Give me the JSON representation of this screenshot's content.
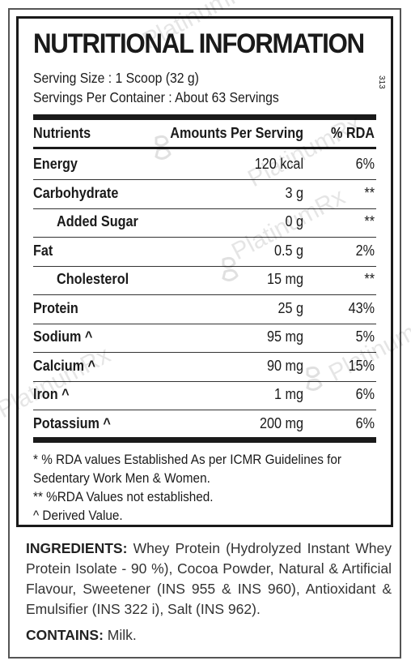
{
  "panel": {
    "title": "NUTRITIONAL INFORMATION",
    "serving_size": "Serving Size : 1 Scoop (32 g)",
    "servings_per_container": "Servings Per Container : About 63 Servings",
    "side_code": "313"
  },
  "table": {
    "headers": {
      "nutrient": "Nutrients",
      "amount": "Amounts Per Serving",
      "rda": "% RDA"
    },
    "rows": [
      {
        "name": "Energy",
        "amount": "120 kcal",
        "rda": "6%"
      },
      {
        "name": "Carbohydrate",
        "amount": "3 g",
        "rda": "**"
      },
      {
        "name": "Added Sugar",
        "amount": "0 g",
        "rda": "**"
      },
      {
        "name": "Fat",
        "amount": "0.5 g",
        "rda": "2%"
      },
      {
        "name": "Cholesterol",
        "amount": "15 mg",
        "rda": "**"
      },
      {
        "name": "Protein",
        "amount": "25 g",
        "rda": "43%"
      },
      {
        "name": "Sodium ^",
        "amount": "95 mg",
        "rda": "5%"
      },
      {
        "name": "Calcium ^",
        "amount": "90 mg",
        "rda": "15%"
      },
      {
        "name": "Iron ^",
        "amount": "1 mg",
        "rda": "6%"
      },
      {
        "name": "Potassium ^",
        "amount": "200 mg",
        "rda": "6%"
      }
    ]
  },
  "footnotes": {
    "line1": "* % RDA values Established As per ICMR Guidelines for",
    "line2": "Sedentary Work Men & Women.",
    "line3": "** %RDA Values not established.",
    "line4": "^ Derived Value."
  },
  "ingredients": {
    "label": "INGREDIENTS:",
    "text": "Whey Protein (Hydrolyzed Instant Whey Protein Isolate - 90 %), Cocoa Powder, Natural & Artificial Flavour, Sweetener (INS 955 & INS 960), Antioxidant & Emulsifier (INS 322 i), Salt (INS 962)."
  },
  "contains": {
    "label": "CONTAINS:",
    "text": "Milk."
  },
  "watermark": {
    "text": "PlatinumRx"
  }
}
